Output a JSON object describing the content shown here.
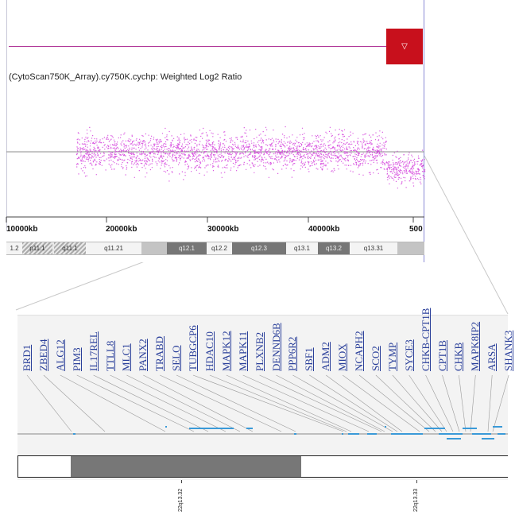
{
  "track": {
    "title": "(CytoScan750K_Array).cy750K.cychp: Weighted Log2 Ratio",
    "region_marker_icon": "down-triangle-icon",
    "colors": {
      "track_line": "#b23a9a",
      "points": "#d030d8",
      "region_marker": "#c8101c"
    }
  },
  "coord_axis": {
    "ticks": [
      "10000kb",
      "20000kb",
      "30000kb",
      "40000kb",
      "500"
    ]
  },
  "ideogram": {
    "bands": [
      "1.2",
      "p11.1",
      "q11.1",
      "q11.21",
      "q12.1",
      "q12.2",
      "q12.3",
      "q13.1",
      "q13.2",
      "q13.31"
    ]
  },
  "genes": {
    "labels": [
      "BRD1",
      "ZBED4",
      "ALG12",
      "PIM3",
      "IL17REL",
      "TTLL8",
      "MLC1",
      "PANX2",
      "TRABD",
      "SELO",
      "TUBGCP6",
      "HDAC10",
      "MAPK12",
      "MAPK11",
      "PLXNB2",
      "DENND6B",
      "PPP6R2",
      "SBF1",
      "ADM2",
      "MIOX",
      "NCAPH2",
      "SCO2",
      "TYMP",
      "SYCE3",
      "CHKB-CPT1B",
      "CPT1B",
      "CHKB",
      "MAPK8IP2",
      "ARSA",
      "SHANK3"
    ],
    "colors": {
      "link": "#2a3f9a",
      "feature": "#3a9ad8"
    }
  },
  "bottom_axis": {
    "labels": [
      "22q13.32",
      "22q13.33"
    ]
  }
}
